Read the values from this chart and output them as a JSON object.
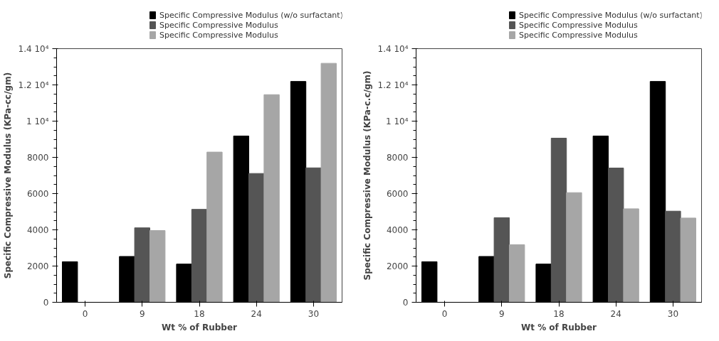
{
  "chart_data": [
    {
      "type": "bar",
      "xlabel": "Wt % of Rubber",
      "ylabel": "Specific Compressive Modulus (KPa-cc/gm)",
      "categories": [
        "0",
        "9",
        "18",
        "24",
        "30"
      ],
      "series": [
        {
          "name": "Specific Compressive Modulus (w/o surfactant)",
          "color": "#000000",
          "values": [
            2240,
            2530,
            2110,
            9180,
            12190
          ]
        },
        {
          "name": "Specific Compressive Modulus",
          "color": "#555555",
          "values": [
            0,
            4110,
            5130,
            7110,
            7420
          ]
        },
        {
          "name": "Specific Compressive Modulus",
          "color": "#a6a6a6",
          "values": [
            0,
            3960,
            8290,
            11460,
            13190
          ]
        }
      ],
      "ylim": [
        0,
        14000
      ],
      "yticks": [
        0,
        2000,
        4000,
        6000,
        8000,
        {
          "value": 10000,
          "label": "1 10⁴"
        },
        {
          "value": 12000,
          "label": "1.2 10⁴"
        },
        {
          "value": 14000,
          "label": "1.4 10⁴"
        }
      ],
      "grid": false,
      "legend": "top"
    },
    {
      "type": "bar",
      "xlabel": "Wt % of Rubber",
      "ylabel": "Specific Compressive Modulus (KPa-c.c/gm)",
      "categories": [
        "0",
        "9",
        "18",
        "24",
        "30"
      ],
      "series": [
        {
          "name": "Specific Compressive Modulus (w/o surfactant)",
          "color": "#000000",
          "values": [
            2240,
            2530,
            2110,
            9180,
            12190
          ]
        },
        {
          "name": "Specific Compressive Modulus",
          "color": "#555555",
          "values": [
            0,
            4670,
            9060,
            7410,
            5030
          ]
        },
        {
          "name": "Specific Compressive Modulus",
          "color": "#a6a6a6",
          "values": [
            0,
            3180,
            6050,
            5160,
            4650
          ]
        }
      ],
      "ylim": [
        0,
        14000
      ],
      "yticks": [
        0,
        2000,
        4000,
        6000,
        8000,
        {
          "value": 10000,
          "label": "1 10⁴"
        },
        {
          "value": 12000,
          "label": "1.2 10⁴"
        },
        {
          "value": 14000,
          "label": "1.4 10⁴"
        }
      ],
      "grid": false,
      "legend": "top"
    }
  ]
}
